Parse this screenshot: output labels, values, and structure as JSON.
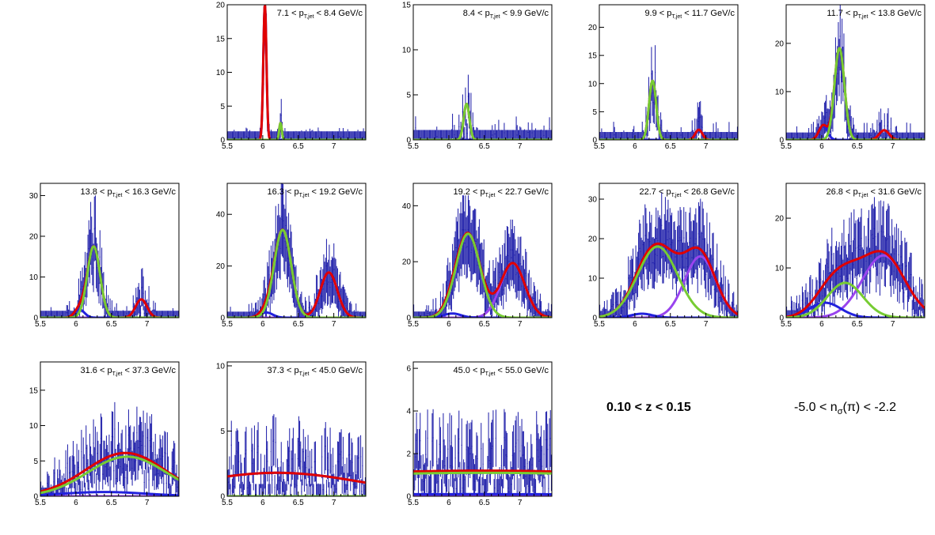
{
  "figure": {
    "z_range_label": "0.10 < z < 0.15",
    "nsigma_label": {
      "prefix": "-5.0 < n",
      "sub": "σ",
      "suffix": "(π) < -2.2"
    }
  },
  "colors": {
    "data": "#1a1aa8",
    "total_fit": "#e00000",
    "pion_fit": "#77cc33",
    "kaon_fit": "#2222dd",
    "proton_fit": "#9944ee",
    "frame": "#000000"
  },
  "chart_data": [
    {
      "type": "histogram_fit",
      "title": "7.1 < pT,jet < 8.4 GeV/c",
      "label": {
        "lo": "7.1",
        "hi": "8.4"
      },
      "xlim": [
        5.5,
        7.45
      ],
      "ylim": [
        0,
        20
      ],
      "xticks": [
        5.5,
        6,
        6.5,
        7
      ],
      "yticks": [
        0,
        5,
        10,
        15,
        20
      ],
      "components": {
        "kaon": {
          "amp": 20,
          "mean": 6.03,
          "sigma": 0.022
        },
        "pion": {
          "amp": 2.5,
          "mean": 6.25,
          "sigma": 0.018
        },
        "proton": {
          "amp": 0,
          "mean": 6.9,
          "sigma": 0.05
        }
      },
      "noise_level": 0.3
    },
    {
      "type": "histogram_fit",
      "title": "8.4 < pT,jet < 9.9 GeV/c",
      "label": {
        "lo": "8.4",
        "hi": "9.9"
      },
      "xlim": [
        5.5,
        7.45
      ],
      "ylim": [
        0,
        15
      ],
      "xticks": [
        5.5,
        6,
        6.5,
        7
      ],
      "yticks": [
        0,
        5,
        10,
        15
      ],
      "components": {
        "kaon": {
          "amp": 0,
          "mean": 6.02,
          "sigma": 0.03
        },
        "pion": {
          "amp": 4,
          "mean": 6.25,
          "sigma": 0.04
        },
        "proton": {
          "amp": 0,
          "mean": 6.9,
          "sigma": 0.05
        }
      },
      "noise_level": 3
    },
    {
      "type": "histogram_fit",
      "title": "9.9 < pT,jet < 11.7 GeV/c",
      "label": {
        "lo": "9.9",
        "hi": "11.7"
      },
      "xlim": [
        5.5,
        7.45
      ],
      "ylim": [
        0,
        24
      ],
      "xticks": [
        5.5,
        6,
        6.5,
        7
      ],
      "yticks": [
        0,
        5,
        10,
        15,
        20
      ],
      "components": {
        "kaon": {
          "amp": 0,
          "mean": 6.02,
          "sigma": 0.03
        },
        "pion": {
          "amp": 10.5,
          "mean": 6.25,
          "sigma": 0.05
        },
        "proton": {
          "amp": 1.8,
          "mean": 6.9,
          "sigma": 0.05
        }
      },
      "noise_level": 3
    },
    {
      "type": "histogram_fit",
      "title": "11.7 < pT,jet < 13.8 GeV/c",
      "label": {
        "lo": "11.7",
        "hi": "13.8"
      },
      "xlim": [
        5.5,
        7.45
      ],
      "ylim": [
        0,
        28
      ],
      "xticks": [
        5.5,
        6,
        6.5,
        7
      ],
      "yticks": [
        0,
        10,
        20
      ],
      "components": {
        "kaon": {
          "amp": 3,
          "mean": 6.02,
          "sigma": 0.06
        },
        "pion": {
          "amp": 19,
          "mean": 6.25,
          "sigma": 0.07
        },
        "proton": {
          "amp": 2,
          "mean": 6.88,
          "sigma": 0.07
        }
      },
      "noise_level": 3
    },
    {
      "type": "histogram_fit",
      "title": "13.8 < pT,jet < 16.3 GeV/c",
      "label": {
        "lo": "13.8",
        "hi": "16.3"
      },
      "xlim": [
        5.5,
        7.45
      ],
      "ylim": [
        0,
        33
      ],
      "xticks": [
        5.5,
        6,
        6.5,
        7
      ],
      "yticks": [
        0,
        10,
        20,
        30
      ],
      "components": {
        "kaon": {
          "amp": 2,
          "mean": 6.05,
          "sigma": 0.07
        },
        "pion": {
          "amp": 17.5,
          "mean": 6.25,
          "sigma": 0.09
        },
        "proton": {
          "amp": 4.5,
          "mean": 6.92,
          "sigma": 0.08
        }
      },
      "noise_level": 3
    },
    {
      "type": "histogram_fit",
      "title": "16.3 < pT,jet < 19.2 GeV/c",
      "label": {
        "lo": "16.3",
        "hi": "19.2"
      },
      "xlim": [
        5.5,
        7.45
      ],
      "ylim": [
        0,
        52
      ],
      "xticks": [
        5.5,
        6,
        6.5,
        7
      ],
      "yticks": [
        0,
        20,
        40
      ],
      "components": {
        "kaon": {
          "amp": 2,
          "mean": 6.05,
          "sigma": 0.09
        },
        "pion": {
          "amp": 34,
          "mean": 6.28,
          "sigma": 0.12
        },
        "proton": {
          "amp": 17.5,
          "mean": 6.93,
          "sigma": 0.12
        }
      },
      "noise_level": 4
    },
    {
      "type": "histogram_fit",
      "title": "19.2 < pT,jet < 22.7 GeV/c",
      "label": {
        "lo": "19.2",
        "hi": "22.7"
      },
      "xlim": [
        5.5,
        7.45
      ],
      "ylim": [
        0,
        48
      ],
      "xticks": [
        5.5,
        6,
        6.5,
        7
      ],
      "yticks": [
        0,
        20,
        40
      ],
      "components": {
        "kaon": {
          "amp": 1.5,
          "mean": 6.05,
          "sigma": 0.12
        },
        "pion": {
          "amp": 30,
          "mean": 6.27,
          "sigma": 0.17
        },
        "proton": {
          "amp": 19.5,
          "mean": 6.9,
          "sigma": 0.17
        }
      },
      "noise_level": 4
    },
    {
      "type": "histogram_fit",
      "title": "22.7 < pT,jet < 26.8 GeV/c",
      "label": {
        "lo": "22.7",
        "hi": "26.8"
      },
      "xlim": [
        5.5,
        7.45
      ],
      "ylim": [
        0,
        34
      ],
      "xticks": [
        5.5,
        6,
        6.5,
        7
      ],
      "yticks": [
        0,
        10,
        20,
        30
      ],
      "components": {
        "kaon": {
          "amp": 1,
          "mean": 6.1,
          "sigma": 0.15
        },
        "pion": {
          "amp": 18,
          "mean": 6.32,
          "sigma": 0.28
        },
        "proton": {
          "amp": 15.5,
          "mean": 6.92,
          "sigma": 0.22
        }
      },
      "noise_level": 3
    },
    {
      "type": "histogram_fit",
      "title": "26.8 < pT,jet < 31.6 GeV/c",
      "label": {
        "lo": "26.8",
        "hi": "31.6"
      },
      "xlim": [
        5.5,
        7.45
      ],
      "ylim": [
        0,
        27
      ],
      "xticks": [
        5.5,
        6,
        6.5,
        7
      ],
      "yticks": [
        0,
        10,
        20
      ],
      "components": {
        "kaon": {
          "amp": 3,
          "mean": 6.05,
          "sigma": 0.22
        },
        "pion": {
          "amp": 7,
          "mean": 6.33,
          "sigma": 0.25
        },
        "proton": {
          "amp": 12.5,
          "mean": 6.87,
          "sigma": 0.3
        }
      },
      "noise_level": 3
    },
    {
      "type": "histogram_fit",
      "title": "31.6 < pT,jet < 37.3 GeV/c",
      "label": {
        "lo": "31.6",
        "hi": "37.3"
      },
      "xlim": [
        5.5,
        7.45
      ],
      "ylim": [
        0,
        19
      ],
      "xticks": [
        5.5,
        6,
        6.5,
        7
      ],
      "yticks": [
        0,
        5,
        10,
        15
      ],
      "components": {
        "kaon": {
          "amp": 0.6,
          "mean": 6.4,
          "sigma": 0.6
        },
        "pion": {
          "amp": 5.6,
          "mean": 6.72,
          "sigma": 0.55
        },
        "proton": {
          "amp": 0,
          "mean": 6.9,
          "sigma": 0.3
        }
      },
      "noise_level": 3
    },
    {
      "type": "histogram_fit",
      "title": "37.3 < pT,jet < 45.0 GeV/c",
      "label": {
        "lo": "37.3",
        "hi": "45.0"
      },
      "xlim": [
        5.5,
        7.45
      ],
      "ylim": [
        0,
        10.3
      ],
      "xticks": [
        5.5,
        6,
        6.5,
        7
      ],
      "yticks": [
        0,
        5,
        10
      ],
      "components": {
        "kaon": {
          "amp": 1.8,
          "mean": 6.2,
          "sigma": 1.2
        },
        "pion": {
          "amp": 0,
          "mean": 6.5,
          "sigma": 0.5
        },
        "proton": {
          "amp": 0,
          "mean": 6.9,
          "sigma": 0.3
        }
      },
      "noise_level": 3
    },
    {
      "type": "histogram_fit",
      "title": "45.0 < pT,jet < 55.0 GeV/c",
      "label": {
        "lo": "45.0",
        "hi": "55.0"
      },
      "xlim": [
        5.5,
        7.45
      ],
      "ylim": [
        0,
        6.3
      ],
      "xticks": [
        5.5,
        6,
        6.5,
        7
      ],
      "yticks": [
        0,
        2,
        4,
        6
      ],
      "components": {
        "kaon": {
          "amp": 0.1,
          "mean": 6.4,
          "sigma": 3
        },
        "pion": {
          "amp": 1.1,
          "mean": 6.5,
          "sigma": 4
        },
        "proton": {
          "amp": 0,
          "mean": 6.9,
          "sigma": 0.3
        }
      },
      "noise_level": 1.2
    }
  ]
}
